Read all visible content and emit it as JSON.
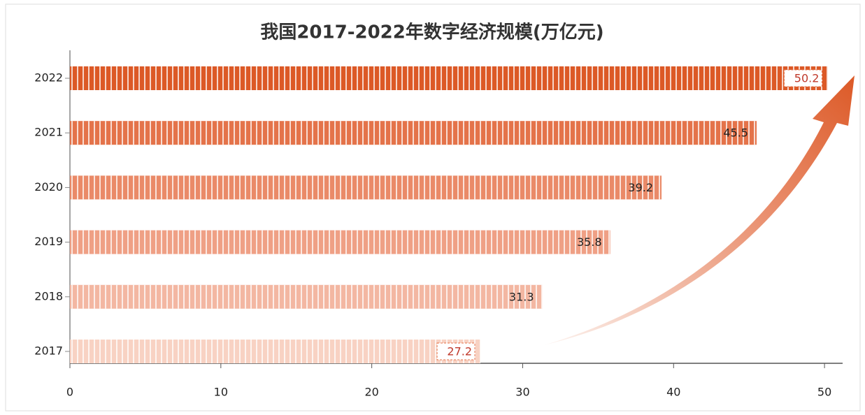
{
  "chart_data": {
    "type": "bar",
    "orientation": "horizontal",
    "title": "我国2017-2022年数字经济规模(万亿元)",
    "categories": [
      "2017",
      "2018",
      "2019",
      "2020",
      "2021",
      "2022"
    ],
    "values": [
      27.2,
      31.3,
      35.8,
      39.2,
      45.5,
      50.2
    ],
    "colors": [
      "#f8d2c3",
      "#f3b7a2",
      "#efa085",
      "#ea8a68",
      "#e4734a",
      "#dc5926"
    ],
    "xlim": [
      0,
      51.2
    ],
    "xticks": [
      0,
      10,
      20,
      30,
      40,
      50
    ]
  }
}
